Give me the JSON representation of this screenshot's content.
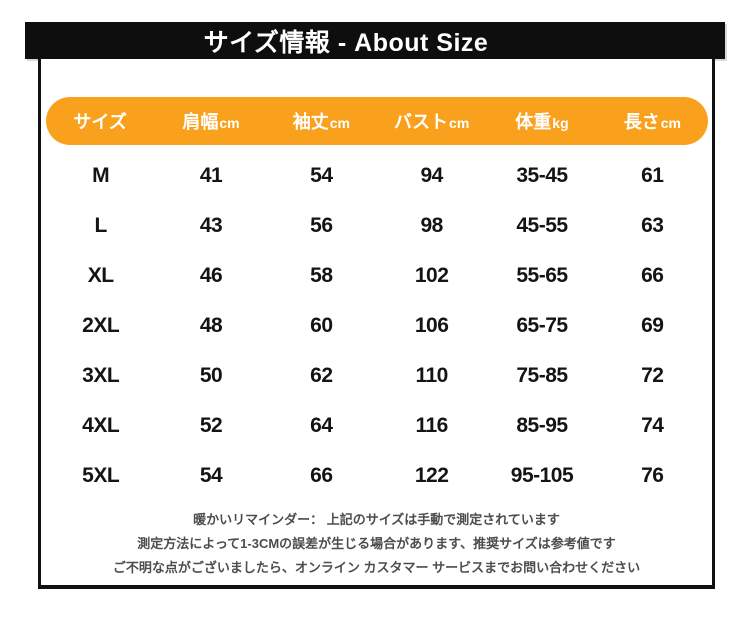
{
  "title_bar": {
    "text": "サイズ情報 - About Size",
    "bg": "#0e0e0e",
    "color": "#ffffff"
  },
  "table": {
    "accent_color": "#F9A11C",
    "headers": [
      {
        "jp": "サイズ",
        "unit": ""
      },
      {
        "jp": "肩幅",
        "unit": "cm"
      },
      {
        "jp": "袖丈",
        "unit": "cm"
      },
      {
        "jp": "バスト",
        "unit": "cm"
      },
      {
        "jp": "体重",
        "unit": "kg"
      },
      {
        "jp": "長さ",
        "unit": "cm"
      }
    ],
    "rows": [
      [
        "M",
        "41",
        "54",
        "94",
        "35-45",
        "61"
      ],
      [
        "L",
        "43",
        "56",
        "98",
        "45-55",
        "63"
      ],
      [
        "XL",
        "46",
        "58",
        "102",
        "55-65",
        "66"
      ],
      [
        "2XL",
        "48",
        "60",
        "106",
        "65-75",
        "69"
      ],
      [
        "3XL",
        "50",
        "62",
        "110",
        "75-85",
        "72"
      ],
      [
        "4XL",
        "52",
        "64",
        "116",
        "85-95",
        "74"
      ],
      [
        "5XL",
        "54",
        "66",
        "122",
        "95-105",
        "76"
      ]
    ]
  },
  "notes": {
    "lines": [
      "暖かいリマインダー： 上記のサイズは手動で測定されています",
      "測定方法によって1-3CMの誤差が生じる場合があります、推奨サイズは参考値です",
      "ご不明な点がございましたら、オンライン カスタマー サービスまでお問い合わせください"
    ]
  }
}
